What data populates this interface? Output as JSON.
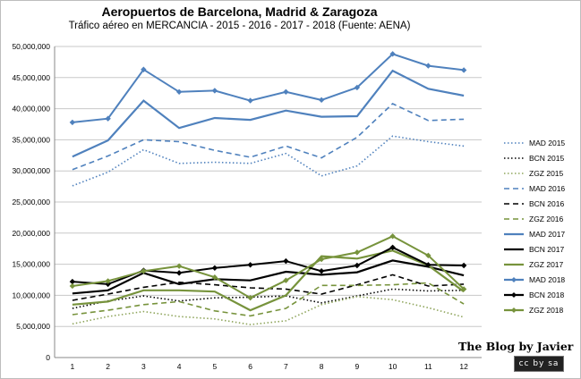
{
  "chart_data": {
    "type": "line",
    "title": "Aeropuertos de Barcelona, Madrid & Zaragoza",
    "subtitle": "Tráfico aéreo en MERCANCIA - 2015 - 2016 - 2017 - 2018 (Fuente: AENA)",
    "xlabel": "",
    "ylabel": "",
    "x": [
      1,
      2,
      3,
      4,
      5,
      6,
      7,
      8,
      9,
      10,
      11,
      12
    ],
    "ylim": [
      0,
      50000000
    ],
    "yticks": [
      0,
      5000000,
      10000000,
      15000000,
      20000000,
      25000000,
      30000000,
      35000000,
      40000000,
      45000000,
      50000000
    ],
    "ytick_labels": [
      "0",
      "5,000,000",
      "10,000,000",
      "15,000,000",
      "20,000,000",
      "25,000,000",
      "30,000,000",
      "35,000,000",
      "40,000,000",
      "45,000,000",
      "50,000,000"
    ],
    "grid": true,
    "legend_position": "right",
    "series": [
      {
        "name": "MAD 2015",
        "color": "#4f81bd",
        "dash": "dotted",
        "marker": "none",
        "values": [
          27600000,
          29800000,
          33400000,
          31200000,
          31400000,
          31200000,
          32800000,
          29200000,
          30800000,
          35600000,
          34700000,
          34000000
        ]
      },
      {
        "name": "BCN 2015",
        "color": "#000000",
        "dash": "dotted",
        "marker": "none",
        "values": [
          7900000,
          9100000,
          9900000,
          9100000,
          9600000,
          9700000,
          9900000,
          8800000,
          9900000,
          11000000,
          10700000,
          10800000
        ]
      },
      {
        "name": "ZGZ 2015",
        "color": "#8fa55c",
        "dash": "dotted",
        "marker": "none",
        "values": [
          5400000,
          6600000,
          7400000,
          6600000,
          6200000,
          5300000,
          5900000,
          8500000,
          9800000,
          9300000,
          8000000,
          6500000
        ]
      },
      {
        "name": "MAD 2016",
        "color": "#4f81bd",
        "dash": "dashed",
        "marker": "none",
        "values": [
          30200000,
          32400000,
          35000000,
          34700000,
          33300000,
          32200000,
          34000000,
          32100000,
          35400000,
          40800000,
          38100000,
          38300000
        ]
      },
      {
        "name": "BCN 2016",
        "color": "#000000",
        "dash": "dashed",
        "marker": "none",
        "values": [
          9200000,
          10200000,
          11300000,
          12100000,
          11700000,
          11200000,
          11000000,
          10200000,
          11700000,
          13300000,
          11500000,
          11800000
        ]
      },
      {
        "name": "ZGZ 2016",
        "color": "#77933c",
        "dash": "dashed",
        "marker": "none",
        "values": [
          6900000,
          7600000,
          8500000,
          9000000,
          7500000,
          6700000,
          7900000,
          11600000,
          11600000,
          11700000,
          12000000,
          8600000
        ]
      },
      {
        "name": "MAD 2017",
        "color": "#4f81bd",
        "dash": "solid",
        "marker": "none",
        "values": [
          32300000,
          34900000,
          41300000,
          36900000,
          38500000,
          38200000,
          39700000,
          38700000,
          38800000,
          46100000,
          43200000,
          42100000
        ]
      },
      {
        "name": "BCN 2017",
        "color": "#000000",
        "dash": "solid",
        "marker": "none",
        "values": [
          10300000,
          10800000,
          13600000,
          11800000,
          12600000,
          12400000,
          13800000,
          13300000,
          13700000,
          15600000,
          14600000,
          13200000
        ]
      },
      {
        "name": "ZGZ 2017",
        "color": "#77933c",
        "dash": "solid",
        "marker": "none",
        "values": [
          8500000,
          9000000,
          10800000,
          10800000,
          10600000,
          7600000,
          10000000,
          16300000,
          15900000,
          17200000,
          14800000,
          10600000
        ]
      },
      {
        "name": "MAD 2018",
        "color": "#4f81bd",
        "dash": "solid",
        "marker": "diamond",
        "values": [
          37800000,
          38400000,
          46300000,
          42700000,
          42900000,
          41300000,
          42700000,
          41400000,
          43400000,
          48800000,
          46900000,
          46200000
        ]
      },
      {
        "name": "BCN 2018",
        "color": "#000000",
        "dash": "solid",
        "marker": "diamond",
        "values": [
          12200000,
          11800000,
          14000000,
          13600000,
          14400000,
          14900000,
          15500000,
          13900000,
          14800000,
          17700000,
          14900000,
          14800000
        ]
      },
      {
        "name": "ZGZ 2018",
        "color": "#77933c",
        "dash": "solid",
        "marker": "diamond",
        "values": [
          11500000,
          12300000,
          13900000,
          14700000,
          12900000,
          9600000,
          12400000,
          15800000,
          16900000,
          19500000,
          16400000,
          11000000
        ]
      }
    ]
  },
  "brand_text": "The Blog by Javier",
  "license_badge_text": "cc by sa"
}
